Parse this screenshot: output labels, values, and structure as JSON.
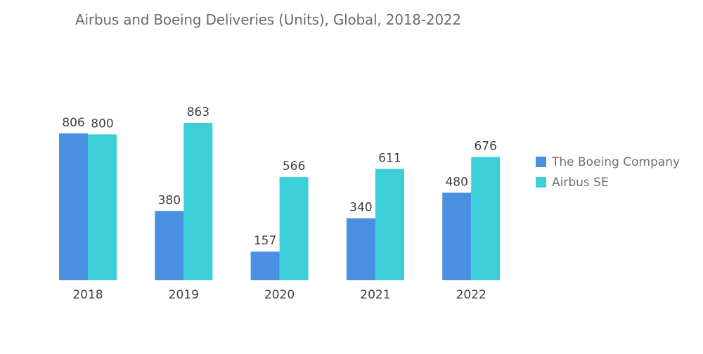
{
  "chart_data": {
    "type": "bar",
    "title": "Airbus and Boeing Deliveries (Units), Global, 2018-2022",
    "categories": [
      "2018",
      "2019",
      "2020",
      "2021",
      "2022"
    ],
    "series": [
      {
        "name": "The Boeing Company",
        "values": [
          806,
          380,
          157,
          340,
          480
        ],
        "color": "#4a90e2"
      },
      {
        "name": "Airbus SE",
        "values": [
          800,
          863,
          566,
          611,
          676
        ],
        "color": "#3dcfd8"
      }
    ],
    "ylim": [
      0,
      863
    ],
    "grid": false,
    "legend": "right",
    "data_labels": true
  }
}
